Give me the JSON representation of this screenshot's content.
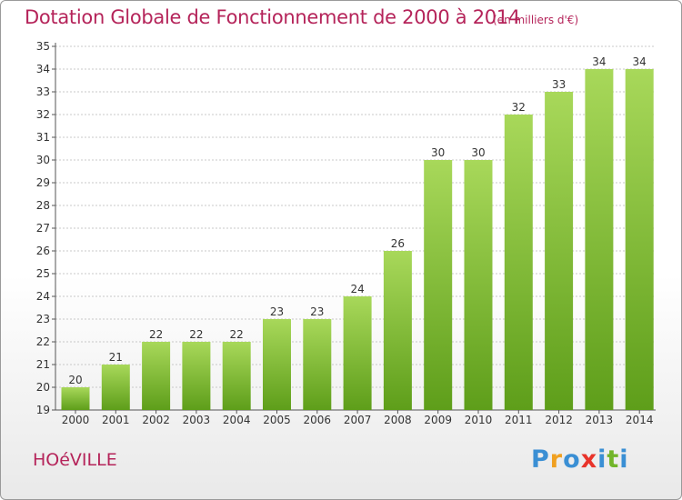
{
  "title": "Dotation Globale de Fonctionnement de 2000 à 2014",
  "unit_note": "(en milliers d'€)",
  "commune": "HOéVILLE",
  "logo": {
    "text": "Proxiti",
    "letters": [
      "P",
      "r",
      "o",
      "x",
      "i",
      "t",
      "i"
    ],
    "colors": [
      "#3a8fd4",
      "#f0a020",
      "#3a8fd4",
      "#e8332a",
      "#3a8fd4",
      "#72b52a",
      "#3a8fd4"
    ]
  },
  "colors": {
    "bar_light": "#a8d85a",
    "bar_dark": "#5e9e1a",
    "text": "#b5245a",
    "grid": "#c8c8c8"
  },
  "chart_data": {
    "type": "bar",
    "title": "Dotation Globale de Fonctionnement de 2000 à 2014",
    "subtitle": "(en milliers d'€)",
    "xlabel": "",
    "ylabel": "",
    "categories": [
      "2000",
      "2001",
      "2002",
      "2003",
      "2004",
      "2005",
      "2006",
      "2007",
      "2008",
      "2009",
      "2010",
      "2011",
      "2012",
      "2013",
      "2014"
    ],
    "values": [
      20,
      21,
      22,
      22,
      22,
      23,
      23,
      24,
      26,
      30,
      30,
      32,
      33,
      34,
      34
    ],
    "ylim": [
      19,
      35
    ],
    "yticks": [
      19,
      20,
      21,
      22,
      23,
      24,
      25,
      26,
      27,
      28,
      29,
      30,
      31,
      32,
      33,
      34,
      35
    ],
    "grid": true
  }
}
